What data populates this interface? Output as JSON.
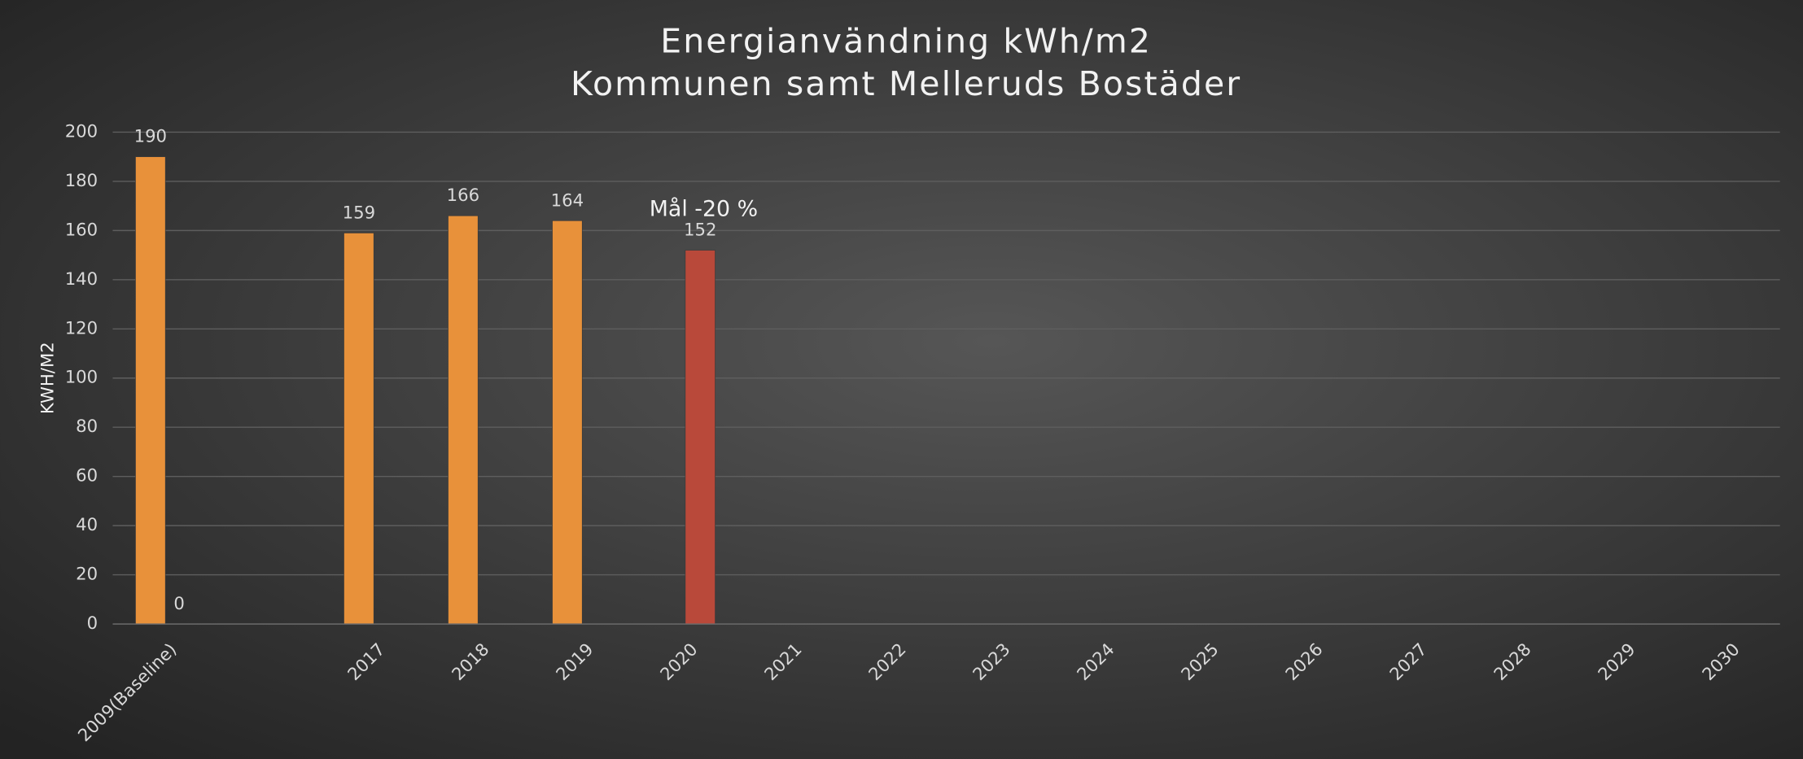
{
  "chart_data": {
    "type": "bar",
    "title": "Energianvändning kWh/m2",
    "subtitle": "Kommunen samt Melleruds Bostäder",
    "y_label": "KWH/M2",
    "categories": [
      "2009(Baseline)",
      null,
      "2017",
      "2018",
      "2019",
      "2020",
      "2021",
      "2022",
      "2023",
      "2024",
      "2025",
      "2026",
      "2027",
      "2028",
      "2029",
      "2030"
    ],
    "series": [
      {
        "color": "#e8913a",
        "values": [
          190,
          null,
          159,
          166,
          164,
          null,
          null,
          null,
          null,
          null,
          null,
          null,
          null,
          null,
          null,
          null
        ]
      },
      {
        "color": "#b9493a",
        "values": [
          0,
          null,
          null,
          null,
          null,
          152,
          null,
          null,
          null,
          null,
          null,
          null,
          null,
          null,
          null,
          null
        ]
      }
    ],
    "annotation": "Mål -20 %",
    "ylim": [
      0,
      200
    ],
    "yticks": [
      0,
      20,
      40,
      60,
      80,
      100,
      120,
      140,
      160,
      180,
      200
    ],
    "grid": true
  }
}
